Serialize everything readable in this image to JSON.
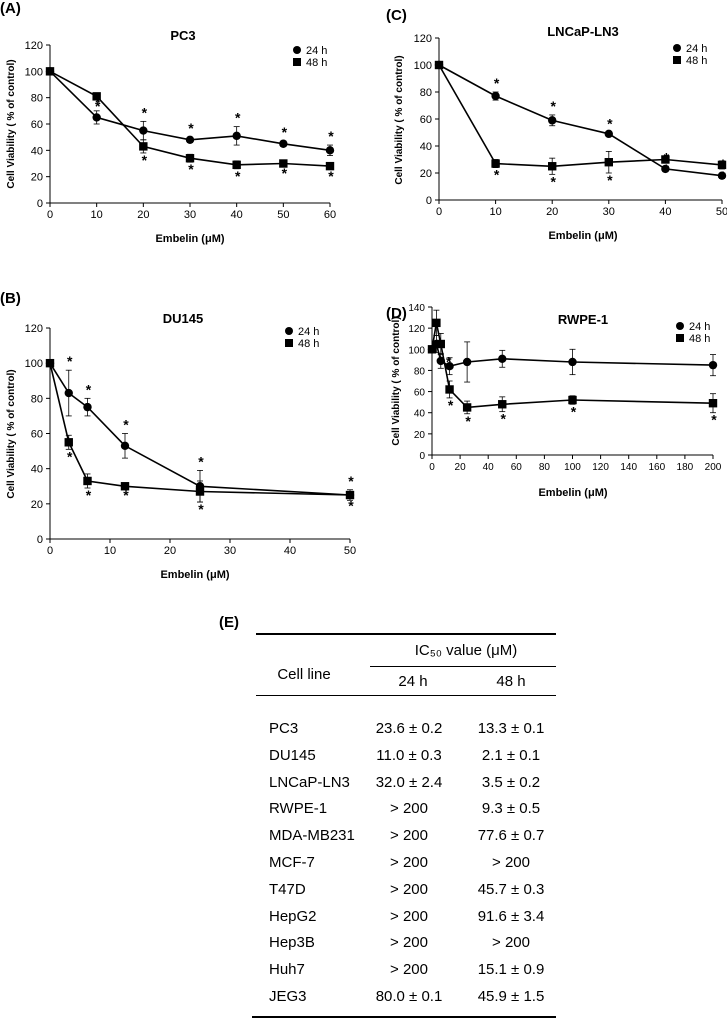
{
  "chart_data": [
    {
      "type": "line",
      "panel": "(A)",
      "title": "PC3",
      "xlabel": "Embelin (μM)",
      "ylabel": "Cell Viability ( % of control)",
      "xlim": [
        0,
        60
      ],
      "ylim": [
        0,
        120
      ],
      "xticks": [
        0,
        10,
        20,
        30,
        40,
        50,
        60
      ],
      "yticks": [
        0,
        20,
        40,
        60,
        80,
        100,
        120
      ],
      "legend": "top-right",
      "series": [
        {
          "name": "24 h",
          "marker": "circle",
          "x": [
            0,
            10,
            20,
            30,
            40,
            50,
            60
          ],
          "y": [
            100,
            65,
            55,
            48,
            51,
            45,
            40
          ],
          "err": [
            0,
            5,
            7,
            2,
            7,
            2,
            4
          ],
          "star": [
            false,
            true,
            true,
            true,
            true,
            true,
            true
          ]
        },
        {
          "name": "48 h",
          "marker": "square",
          "x": [
            0,
            10,
            20,
            30,
            40,
            50,
            60
          ],
          "y": [
            100,
            81,
            43,
            34,
            29,
            30,
            28
          ],
          "err": [
            0,
            2,
            5,
            3,
            3,
            2,
            2
          ],
          "star": [
            false,
            true,
            true,
            true,
            true,
            true,
            true
          ]
        }
      ]
    },
    {
      "type": "line",
      "panel": "(C)",
      "title": "LNCaP-LN3",
      "xlabel": "Embelin (μM)",
      "ylabel": "Cell Viability ( % of control)",
      "xlim": [
        0,
        50
      ],
      "ylim": [
        0,
        120
      ],
      "xticks": [
        0,
        10,
        20,
        30,
        40,
        50
      ],
      "yticks": [
        0,
        20,
        40,
        60,
        80,
        100,
        120
      ],
      "legend": "top-right",
      "series": [
        {
          "name": "24 h",
          "marker": "circle",
          "x": [
            0,
            10,
            20,
            30,
            40,
            50
          ],
          "y": [
            100,
            77,
            59,
            49,
            23,
            18
          ],
          "err": [
            0,
            3,
            4,
            1,
            2,
            2
          ],
          "star": [
            false,
            true,
            true,
            true,
            true,
            true
          ]
        },
        {
          "name": "48 h",
          "marker": "square",
          "x": [
            0,
            10,
            20,
            30,
            40,
            50
          ],
          "y": [
            100,
            27,
            25,
            28,
            30,
            26
          ],
          "err": [
            0,
            3,
            6,
            8,
            2,
            3
          ],
          "star": [
            false,
            true,
            true,
            true,
            true,
            true
          ]
        }
      ]
    },
    {
      "type": "line",
      "panel": "(B)",
      "title": "DU145",
      "xlabel": "Embelin (μM)",
      "ylabel": "Cell Viability ( % of control)",
      "xlim": [
        0,
        50
      ],
      "ylim": [
        0,
        120
      ],
      "xticks": [
        0,
        10,
        20,
        30,
        40,
        50
      ],
      "yticks": [
        0,
        20,
        40,
        60,
        80,
        100,
        120
      ],
      "legend": "top-right",
      "series": [
        {
          "name": "24 h",
          "marker": "circle",
          "x": [
            0,
            3.125,
            6.25,
            12.5,
            25,
            50
          ],
          "y": [
            100,
            83,
            75,
            53,
            30,
            25
          ],
          "err": [
            0,
            13,
            5,
            7,
            9,
            3
          ],
          "star": [
            false,
            true,
            true,
            true,
            true,
            true
          ]
        },
        {
          "name": "48 h",
          "marker": "square",
          "x": [
            0,
            3.125,
            6.25,
            12.5,
            25,
            50
          ],
          "y": [
            100,
            55,
            33,
            30,
            27,
            25
          ],
          "err": [
            0,
            4,
            4,
            1,
            6,
            2
          ],
          "star": [
            false,
            true,
            true,
            true,
            true,
            true
          ]
        }
      ]
    },
    {
      "type": "line",
      "panel": "(D)",
      "title": "RWPE-1",
      "xlabel": "Embelin (μM)",
      "ylabel": "Cell Viability ( % of control)",
      "xlim": [
        0,
        200
      ],
      "ylim": [
        0,
        140
      ],
      "xticks": [
        0,
        20,
        40,
        60,
        80,
        100,
        120,
        140,
        160,
        180,
        200
      ],
      "yticks": [
        0,
        20,
        40,
        60,
        80,
        100,
        120,
        140
      ],
      "legend": "top-right",
      "series": [
        {
          "name": "24 h",
          "marker": "circle",
          "x": [
            0,
            3.125,
            6.25,
            12.5,
            25,
            50,
            100,
            200
          ],
          "y": [
            100,
            105,
            89,
            84,
            88,
            91,
            88,
            85
          ],
          "err": [
            0,
            8,
            7,
            8,
            19,
            8,
            12,
            10
          ],
          "star": [
            false,
            false,
            false,
            false,
            false,
            false,
            false,
            false
          ]
        },
        {
          "name": "48 h",
          "marker": "square",
          "x": [
            0,
            3.125,
            6.25,
            12.5,
            25,
            50,
            100,
            200
          ],
          "y": [
            100,
            125,
            105,
            62,
            45,
            48,
            52,
            49
          ],
          "err": [
            0,
            12,
            10,
            8,
            6,
            7,
            4,
            9
          ],
          "star": [
            false,
            false,
            true,
            true,
            true,
            true,
            true,
            true
          ]
        }
      ]
    }
  ],
  "table": {
    "panel": "(E)",
    "col_cell_line": "Cell line",
    "ic50_header": "IC₅₀ value (μM)",
    "col_24": "24 h",
    "col_48": "48 h",
    "rows": [
      {
        "line": "PC3",
        "h24": "23.6 ± 0.2",
        "h48": "13.3 ± 0.1"
      },
      {
        "line": "DU145",
        "h24": "11.0 ± 0.3",
        "h48": "2.1 ± 0.1"
      },
      {
        "line": "LNCaP-LN3",
        "h24": "32.0 ± 2.4",
        "h48": "3.5 ± 0.2"
      },
      {
        "line": "RWPE-1",
        "h24": "> 200",
        "h48": "9.3 ± 0.5"
      },
      {
        "line": "MDA-MB231",
        "h24": "> 200",
        "h48": "77.6 ± 0.7"
      },
      {
        "line": "MCF-7",
        "h24": "> 200",
        "h48": "> 200"
      },
      {
        "line": "T47D",
        "h24": "> 200",
        "h48": "45.7 ± 0.3"
      },
      {
        "line": "HepG2",
        "h24": "> 200",
        "h48": "91.6 ± 3.4"
      },
      {
        "line": "Hep3B",
        "h24": "> 200",
        "h48": "> 200"
      },
      {
        "line": "Huh7",
        "h24": "> 200",
        "h48": "15.1 ± 0.9"
      },
      {
        "line": "JEG3",
        "h24": "80.0 ± 0.1",
        "h48": "45.9 ± 1.5"
      }
    ]
  }
}
